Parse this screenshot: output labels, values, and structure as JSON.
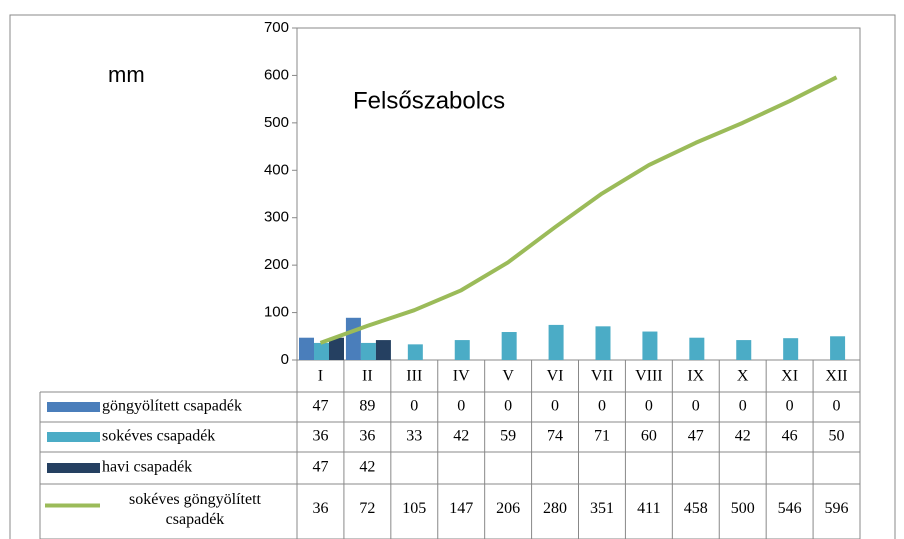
{
  "chart_data": {
    "type": "bar",
    "title": "Felsőszabolcs",
    "y_axis_label": "mm",
    "categories": [
      "I",
      "II",
      "III",
      "IV",
      "V",
      "VI",
      "VII",
      "VIII",
      "IX",
      "X",
      "XI",
      "XII"
    ],
    "ylim": [
      0,
      700
    ],
    "yticks": [
      0,
      100,
      200,
      300,
      400,
      500,
      600,
      700
    ],
    "series": [
      {
        "name": "göngyölített csapadék",
        "color": "#4a7ebb",
        "values": [
          47,
          89,
          0,
          0,
          0,
          0,
          0,
          0,
          0,
          0,
          0,
          0
        ]
      },
      {
        "name": "sokéves csapadék",
        "color": "#4bacc6",
        "values": [
          36,
          36,
          33,
          42,
          59,
          74,
          71,
          60,
          47,
          42,
          46,
          50
        ]
      },
      {
        "name": "havi csapadék",
        "color": "#254061",
        "values": [
          47,
          42,
          null,
          null,
          null,
          null,
          null,
          null,
          null,
          null,
          null,
          null
        ]
      },
      {
        "name": "sokéves göngyölített csapadék",
        "color": "#9bbb59",
        "type": "line",
        "values": [
          36,
          72,
          105,
          147,
          206,
          280,
          351,
          411,
          458,
          500,
          546,
          596
        ]
      }
    ]
  }
}
